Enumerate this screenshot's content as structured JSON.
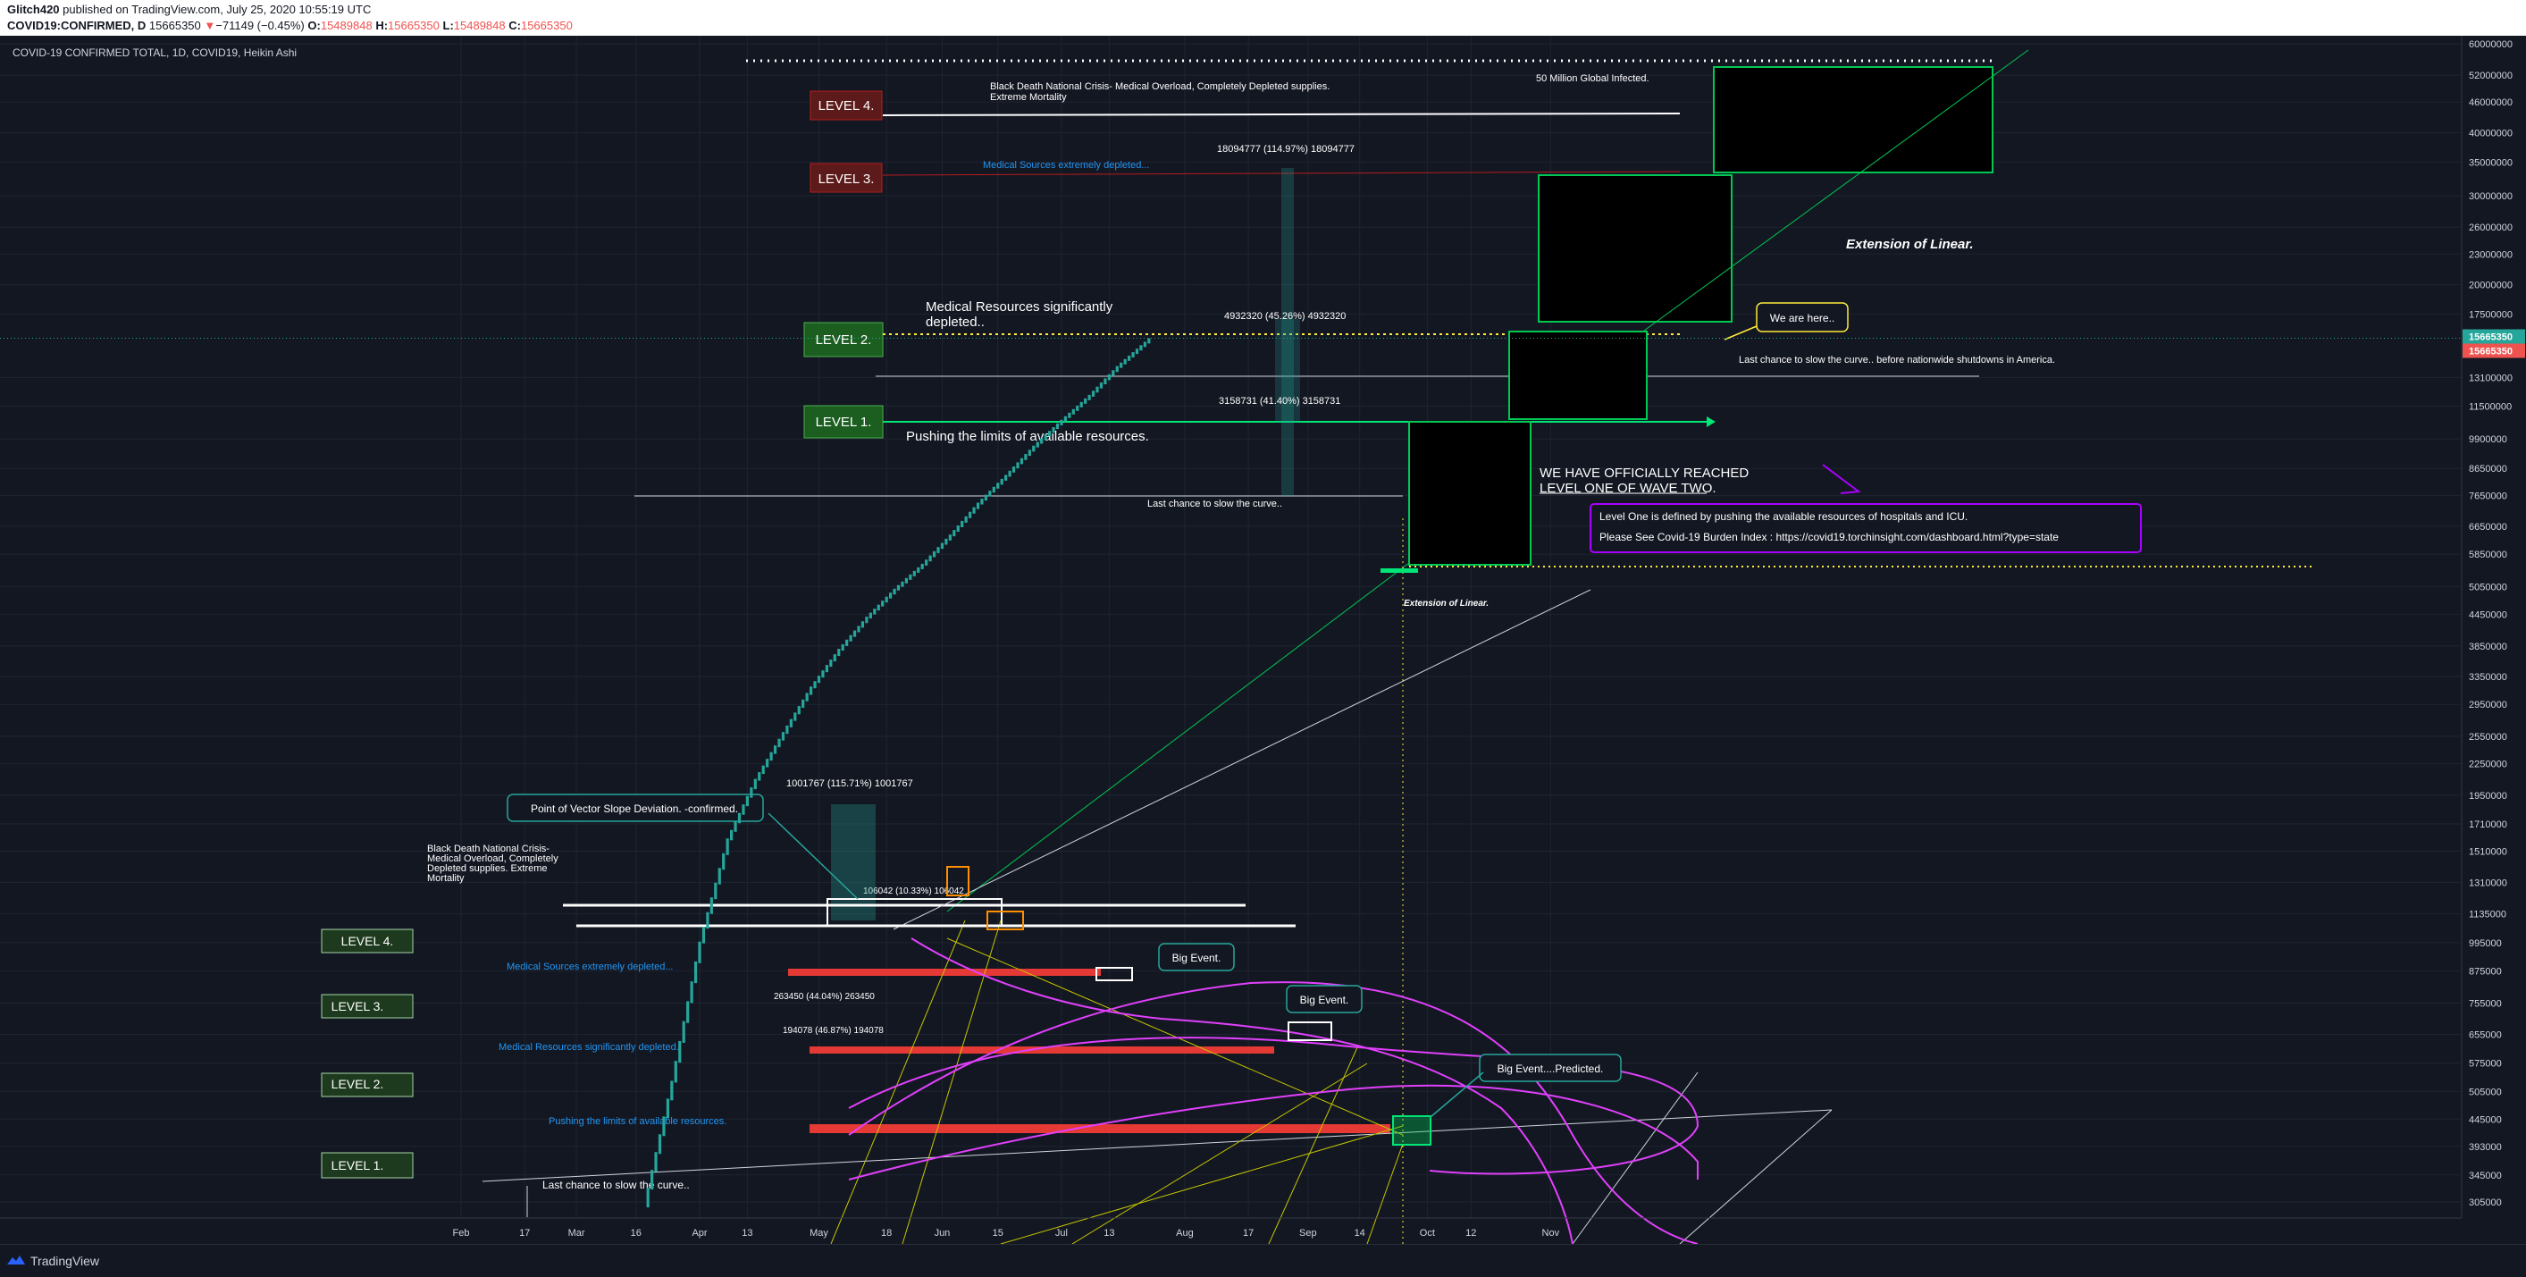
{
  "header": {
    "publisher": "Glitch420",
    "published_text": " published on TradingView.com, July 25, 2020 10:55:19 UTC",
    "symbol": "COVID19:CONFIRMED, D",
    "last": "15665350",
    "change_arrow": "▼",
    "change": "−71149 (−0.45%)",
    "open_label": "O:",
    "open": "15489848",
    "high_label": "H:",
    "high": "15665350",
    "low_label": "L:",
    "low": "15489848",
    "close_label": "C:",
    "close": "15665350"
  },
  "footer": {
    "brand": "TradingView"
  },
  "colors": {
    "background": "#131722",
    "candle": "#26a69a",
    "grid": "#2a2e39",
    "axis_text": "#d1d4dc",
    "green_level": "#1b5e20",
    "red_level": "#5c1a1a",
    "magenta": "#e040fb",
    "price_tag": "#26a69a",
    "price_tag_red": "#ef5350"
  },
  "chart_data": {
    "type": "candlestick",
    "title": "COVID-19 CONFIRMED TOTAL, 1D, COVID19, Heikin Ashi",
    "scale": "log",
    "x_ticks": [
      "Feb",
      "17",
      "Mar",
      "16",
      "Apr",
      "13",
      "May",
      "18",
      "Jun",
      "15",
      "Jul",
      "13",
      "Aug",
      "17",
      "Sep",
      "14",
      "Oct",
      "12",
      "Nov"
    ],
    "y_ticks": [
      60000000,
      52000000,
      46000000,
      40000000,
      35000000,
      30000000,
      26000000,
      23000000,
      20000000,
      17500000,
      13100000,
      11500000,
      9900000,
      8650000,
      7650000,
      6650000,
      5850000,
      5050000,
      4450000,
      3850000,
      3350000,
      2950000,
      2550000,
      2250000,
      1950000,
      1710000,
      1510000,
      1310000,
      1135000,
      995000,
      875000,
      755000,
      655000,
      575000,
      505000,
      445000,
      393000,
      345000,
      305000
    ],
    "y_tick_labels": [
      "60000000",
      "52000000",
      "46000000",
      "40000000",
      "35000000",
      "30000000",
      "26000000",
      "23000000",
      "20000000",
      "17500000",
      "13100000",
      "11500000",
      "9900000",
      "8650000",
      "7650000",
      "6650000",
      "5850000",
      "5050000",
      "4450000",
      "3850000",
      "3350000",
      "2950000",
      "2550000",
      "2250000",
      "1950000",
      "1710000",
      "1510000",
      "1310000",
      "1135000",
      "995000",
      "875000",
      "755000",
      "655000",
      "575000",
      "505000",
      "445000",
      "393000",
      "345000",
      "305000"
    ],
    "last_price_tags": [
      "15665350",
      "15665350"
    ],
    "series": [
      {
        "dates": [
          "2020-03-19",
          "2020-03-26",
          "2020-04-02",
          "2020-04-09",
          "2020-04-16",
          "2020-04-23",
          "2020-04-30",
          "2020-05-07",
          "2020-05-14",
          "2020-05-21",
          "2020-05-28",
          "2020-06-04",
          "2020-06-11",
          "2020-06-18",
          "2020-06-25",
          "2020-07-02",
          "2020-07-09",
          "2020-07-16",
          "2020-07-24"
        ],
        "values": [
          300000,
          530000,
          1000000,
          1600000,
          2100000,
          2600000,
          3200000,
          3800000,
          4400000,
          5000000,
          5600000,
          6400000,
          7400000,
          8400000,
          9600000,
          10800000,
          12100000,
          13800000,
          15665350
        ]
      }
    ]
  },
  "annotations": {
    "upper_levels": [
      {
        "label": "LEVEL 4.",
        "note": "Black Death National Crisis- Medical Overload, Completely Depleted supplies. Extreme Mortality"
      },
      {
        "label": "LEVEL 3.",
        "note": "Medical Sources extremely depleted..."
      },
      {
        "label": "LEVEL 2.",
        "note": "Medical Resources significantly depleted.."
      },
      {
        "label": "LEVEL 1.",
        "note": "Pushing the limits of available resources."
      }
    ],
    "lower_levels": [
      {
        "label": "LEVEL 4.",
        "note": "Black Death National Crisis- Medical Overload, Completely Depleted supplies. Extreme Mortality"
      },
      {
        "label": "LEVEL 3.",
        "note": "Medical Sources extremely depleted..."
      },
      {
        "label": "LEVEL 2.",
        "note": "Medical Resources significantly depleted.."
      },
      {
        "label": "LEVEL 1.",
        "note": "Pushing the limits of available resources."
      }
    ],
    "measure_labels": [
      "18094777 (114.97%) 18094777",
      "4932320 (45.26%) 4932320",
      "3158731 (41.40%) 3158731",
      "1001767 (115.71%) 1001767",
      "106042 (10.33%) 106042",
      "263450 (44.04%) 263450",
      "194078 (46.87%) 194078"
    ],
    "last_chance": "Last chance to slow the curve..",
    "last_chance_america": "Last chance to slow the curve.. before nationwide shutdowns in America.",
    "million50": "50 Million Global Infected.",
    "extension": "Extension of Linear.",
    "extension_small": "Extension of Linear.",
    "we_are_here": "We are here..",
    "officially_1": "WE HAVE OFFICIALLY REACHED",
    "officially_2": "LEVEL ONE OF WAVE TWO.",
    "info_1": "Level One is defined by pushing the available resources of hospitals and ICU.",
    "info_2": "Please See Covid-19 Burden Index : https://covid19.torchinsight.com/dashboard.html?type=state",
    "vector": "Point of Vector Slope Deviation. -confirmed.",
    "big_event": "Big Event.",
    "big_event_predicted": "Big Event....Predicted."
  }
}
